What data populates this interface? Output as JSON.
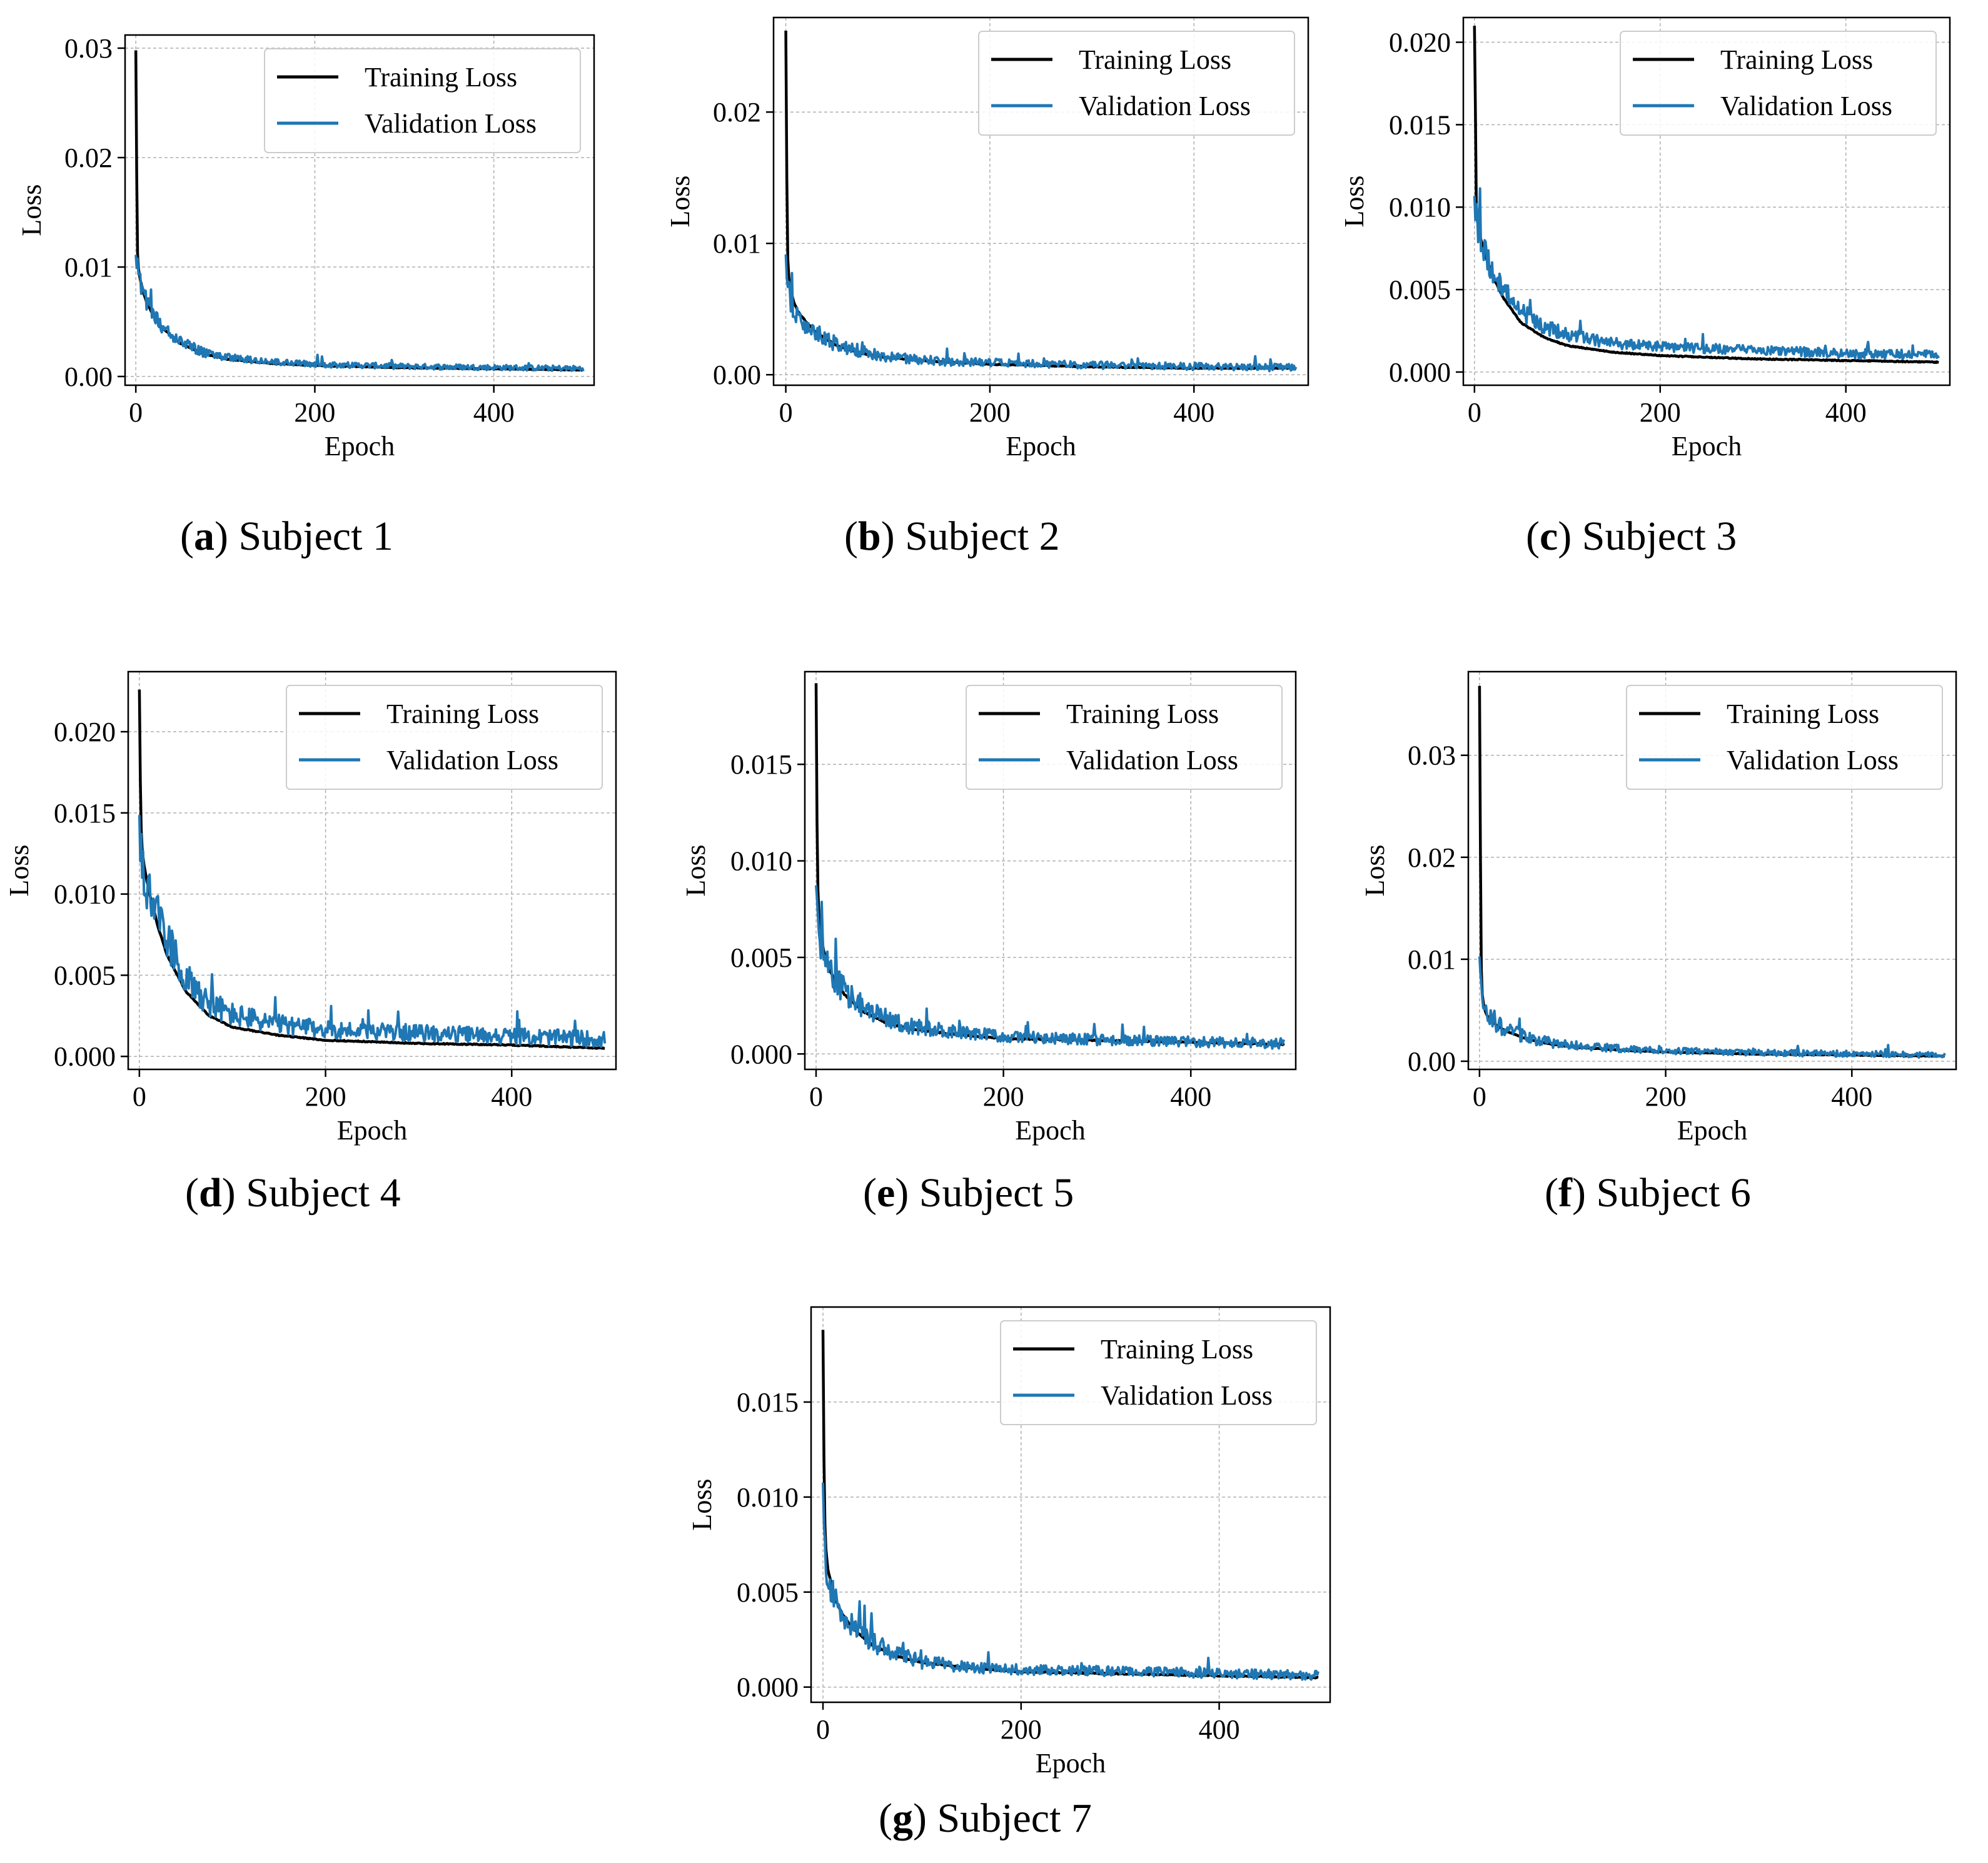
{
  "colors": {
    "training": "#000000",
    "validation": "#1f77b4",
    "grid": "#b0b0b0"
  },
  "chart_data": [
    {
      "type": "line",
      "panel_letter": "a",
      "caption": "Subject 1",
      "xlabel": "Epoch",
      "ylabel": "Loss",
      "xlim": [
        -12,
        512
      ],
      "ylim": [
        -0.0008,
        0.0312
      ],
      "xticks": [
        0,
        200,
        400
      ],
      "yticks": [
        0.0,
        0.01,
        0.02,
        0.03
      ],
      "ytick_labels": [
        "0.00",
        "0.01",
        "0.02",
        "0.03"
      ],
      "grid": true,
      "legend": "top-right",
      "series": [
        {
          "name": "Training Loss",
          "peak": 0.0298,
          "x": [
            0,
            1,
            2,
            3,
            5,
            8,
            12,
            20,
            30,
            50,
            75,
            100,
            150,
            200,
            300,
            400,
            500
          ],
          "y": [
            0.0298,
            0.0185,
            0.0112,
            0.0098,
            0.0088,
            0.0078,
            0.0068,
            0.0055,
            0.0044,
            0.003,
            0.0021,
            0.0016,
            0.0012,
            0.001,
            0.0008,
            0.0007,
            0.0006
          ]
        },
        {
          "name": "Validation Loss",
          "noise": 0.00025,
          "x": [
            0,
            1,
            3,
            5,
            8,
            12,
            20,
            30,
            50,
            75,
            100,
            150,
            200,
            300,
            400,
            500
          ],
          "y": [
            0.011,
            0.0105,
            0.0092,
            0.0085,
            0.0077,
            0.0068,
            0.0055,
            0.0045,
            0.0031,
            0.0022,
            0.0017,
            0.0013,
            0.0011,
            0.0009,
            0.0008,
            0.0007
          ]
        }
      ]
    },
    {
      "type": "line",
      "panel_letter": "b",
      "caption": "Subject 2",
      "xlabel": "Epoch",
      "ylabel": "Loss",
      "xlim": [
        -12,
        512
      ],
      "ylim": [
        -0.0008,
        0.0272
      ],
      "xticks": [
        0,
        200,
        400
      ],
      "yticks": [
        0.0,
        0.01,
        0.02
      ],
      "ytick_labels": [
        "0.00",
        "0.01",
        "0.02"
      ],
      "grid": true,
      "legend": "top-right",
      "series": [
        {
          "name": "Training Loss",
          "peak": 0.0262,
          "x": [
            0,
            1,
            2,
            3,
            5,
            8,
            12,
            20,
            30,
            50,
            75,
            100,
            150,
            200,
            300,
            400,
            500
          ],
          "y": [
            0.0262,
            0.015,
            0.0088,
            0.0074,
            0.0064,
            0.0055,
            0.0048,
            0.004,
            0.0032,
            0.0022,
            0.0016,
            0.0013,
            0.001,
            0.0008,
            0.0006,
            0.0005,
            0.0005
          ]
        },
        {
          "name": "Validation Loss",
          "noise": 0.00028,
          "x": [
            0,
            1,
            3,
            5,
            8,
            12,
            20,
            30,
            50,
            75,
            100,
            150,
            200,
            300,
            400,
            500
          ],
          "y": [
            0.009,
            0.008,
            0.0062,
            0.0055,
            0.005,
            0.0045,
            0.0038,
            0.0031,
            0.0022,
            0.0017,
            0.0013,
            0.001,
            0.0009,
            0.0007,
            0.0006,
            0.0005
          ]
        }
      ]
    },
    {
      "type": "line",
      "panel_letter": "c",
      "caption": "Subject 3",
      "xlabel": "Epoch",
      "ylabel": "Loss",
      "xlim": [
        -12,
        512
      ],
      "ylim": [
        -0.0008,
        0.0215
      ],
      "xticks": [
        0,
        200,
        400
      ],
      "yticks": [
        0.0,
        0.005,
        0.01,
        0.015,
        0.02
      ],
      "ytick_labels": [
        "0.000",
        "0.005",
        "0.010",
        "0.015",
        "0.020"
      ],
      "grid": true,
      "legend": "top-right",
      "series": [
        {
          "name": "Training Loss",
          "peak": 0.021,
          "x": [
            0,
            1,
            2,
            3,
            5,
            8,
            12,
            20,
            30,
            50,
            75,
            100,
            150,
            200,
            300,
            400,
            500
          ],
          "y": [
            0.021,
            0.016,
            0.01,
            0.0092,
            0.0085,
            0.0078,
            0.007,
            0.0058,
            0.0046,
            0.003,
            0.0021,
            0.0016,
            0.0012,
            0.001,
            0.0008,
            0.0007,
            0.0006
          ]
        },
        {
          "name": "Validation Loss",
          "noise": 0.00028,
          "x": [
            0,
            1,
            3,
            5,
            8,
            12,
            20,
            30,
            50,
            75,
            100,
            150,
            200,
            300,
            400,
            500
          ],
          "y": [
            0.0105,
            0.0098,
            0.009,
            0.0084,
            0.0077,
            0.0071,
            0.006,
            0.005,
            0.0036,
            0.0027,
            0.0022,
            0.0017,
            0.0015,
            0.0013,
            0.0011,
            0.001
          ]
        }
      ]
    },
    {
      "type": "line",
      "panel_letter": "d",
      "caption": "Subject 4",
      "xlabel": "Epoch",
      "ylabel": "Loss",
      "xlim": [
        -12,
        512
      ],
      "ylim": [
        -0.0008,
        0.0237
      ],
      "xticks": [
        0,
        200,
        400
      ],
      "yticks": [
        0.0,
        0.005,
        0.01,
        0.015,
        0.02
      ],
      "ytick_labels": [
        "0.000",
        "0.005",
        "0.010",
        "0.015",
        "0.020"
      ],
      "grid": true,
      "legend": "top-right",
      "series": [
        {
          "name": "Training Loss",
          "peak": 0.0226,
          "x": [
            0,
            1,
            2,
            3,
            5,
            8,
            12,
            20,
            30,
            50,
            75,
            100,
            150,
            200,
            300,
            400,
            500
          ],
          "y": [
            0.0226,
            0.017,
            0.014,
            0.0128,
            0.0118,
            0.0108,
            0.0098,
            0.008,
            0.0062,
            0.004,
            0.0025,
            0.0018,
            0.0013,
            0.001,
            0.0008,
            0.0007,
            0.0005
          ]
        },
        {
          "name": "Validation Loss",
          "noise": 0.0005,
          "x": [
            0,
            1,
            3,
            5,
            8,
            12,
            20,
            30,
            50,
            75,
            100,
            150,
            200,
            300,
            400,
            500
          ],
          "y": [
            0.0145,
            0.013,
            0.012,
            0.0112,
            0.0105,
            0.0098,
            0.0085,
            0.007,
            0.0048,
            0.0032,
            0.0025,
            0.0019,
            0.0016,
            0.0014,
            0.0012,
            0.001
          ]
        }
      ]
    },
    {
      "type": "line",
      "panel_letter": "e",
      "caption": "Subject 5",
      "xlabel": "Epoch",
      "ylabel": "Loss",
      "xlim": [
        -12,
        512
      ],
      "ylim": [
        -0.0008,
        0.0198
      ],
      "xticks": [
        0,
        200,
        400
      ],
      "yticks": [
        0.0,
        0.005,
        0.01,
        0.015
      ],
      "ytick_labels": [
        "0.000",
        "0.005",
        "0.010",
        "0.015"
      ],
      "grid": true,
      "legend": "top-right",
      "series": [
        {
          "name": "Training Loss",
          "peak": 0.0192,
          "x": [
            0,
            1,
            2,
            3,
            5,
            8,
            12,
            20,
            30,
            50,
            75,
            100,
            150,
            200,
            300,
            400,
            500
          ],
          "y": [
            0.0192,
            0.012,
            0.0085,
            0.0072,
            0.0062,
            0.0054,
            0.0046,
            0.0038,
            0.0031,
            0.0022,
            0.0016,
            0.0013,
            0.001,
            0.0008,
            0.0007,
            0.0006,
            0.0005
          ]
        },
        {
          "name": "Validation Loss",
          "noise": 0.00028,
          "x": [
            0,
            1,
            3,
            5,
            8,
            12,
            20,
            30,
            50,
            75,
            100,
            150,
            200,
            300,
            400,
            500
          ],
          "y": [
            0.0085,
            0.0075,
            0.0064,
            0.0057,
            0.005,
            0.0045,
            0.0038,
            0.0032,
            0.0024,
            0.0018,
            0.0014,
            0.0011,
            0.0009,
            0.0007,
            0.0006,
            0.0005
          ]
        }
      ]
    },
    {
      "type": "line",
      "panel_letter": "f",
      "caption": "Subject 6",
      "xlabel": "Epoch",
      "ylabel": "Loss",
      "xlim": [
        -12,
        512
      ],
      "ylim": [
        -0.0008,
        0.0382
      ],
      "xticks": [
        0,
        200,
        400
      ],
      "yticks": [
        0.0,
        0.01,
        0.02,
        0.03
      ],
      "ytick_labels": [
        "0.00",
        "0.01",
        "0.02",
        "0.03"
      ],
      "grid": true,
      "legend": "top-right",
      "series": [
        {
          "name": "Training Loss",
          "peak": 0.0368,
          "x": [
            0,
            1,
            2,
            3,
            5,
            8,
            12,
            20,
            30,
            50,
            75,
            100,
            150,
            200,
            300,
            400,
            500
          ],
          "y": [
            0.0368,
            0.02,
            0.009,
            0.0065,
            0.0052,
            0.0045,
            0.004,
            0.0034,
            0.0029,
            0.0022,
            0.0017,
            0.0014,
            0.0011,
            0.0009,
            0.0007,
            0.0006,
            0.0005
          ]
        },
        {
          "name": "Validation Loss",
          "noise": 0.0003,
          "x": [
            0,
            1,
            3,
            5,
            8,
            12,
            20,
            30,
            50,
            75,
            100,
            150,
            200,
            300,
            400,
            500
          ],
          "y": [
            0.01,
            0.008,
            0.006,
            0.0052,
            0.0046,
            0.0041,
            0.0035,
            0.003,
            0.0023,
            0.0018,
            0.0015,
            0.0012,
            0.001,
            0.0008,
            0.0007,
            0.0006
          ]
        }
      ]
    },
    {
      "type": "line",
      "panel_letter": "g",
      "caption": "Subject 7",
      "xlabel": "Epoch",
      "ylabel": "Loss",
      "xlim": [
        -12,
        512
      ],
      "ylim": [
        -0.0008,
        0.02
      ],
      "xticks": [
        0,
        200,
        400
      ],
      "yticks": [
        0.0,
        0.005,
        0.01,
        0.015
      ],
      "ytick_labels": [
        "0.000",
        "0.005",
        "0.010",
        "0.015"
      ],
      "grid": true,
      "legend": "top-right",
      "series": [
        {
          "name": "Training Loss",
          "peak": 0.0188,
          "x": [
            0,
            1,
            2,
            3,
            5,
            8,
            12,
            20,
            30,
            50,
            75,
            100,
            150,
            200,
            300,
            400,
            500
          ],
          "y": [
            0.0188,
            0.012,
            0.0085,
            0.0072,
            0.0062,
            0.0055,
            0.0047,
            0.0038,
            0.0031,
            0.0022,
            0.0016,
            0.0013,
            0.001,
            0.0008,
            0.0007,
            0.0006,
            0.0005
          ]
        },
        {
          "name": "Validation Loss",
          "noise": 0.00025,
          "x": [
            0,
            1,
            3,
            5,
            8,
            12,
            20,
            30,
            50,
            75,
            100,
            150,
            200,
            300,
            400,
            500
          ],
          "y": [
            0.0105,
            0.008,
            0.0065,
            0.0058,
            0.0051,
            0.0045,
            0.0038,
            0.0031,
            0.0023,
            0.0017,
            0.0013,
            0.001,
            0.0009,
            0.0008,
            0.0007,
            0.0006
          ]
        }
      ]
    }
  ]
}
